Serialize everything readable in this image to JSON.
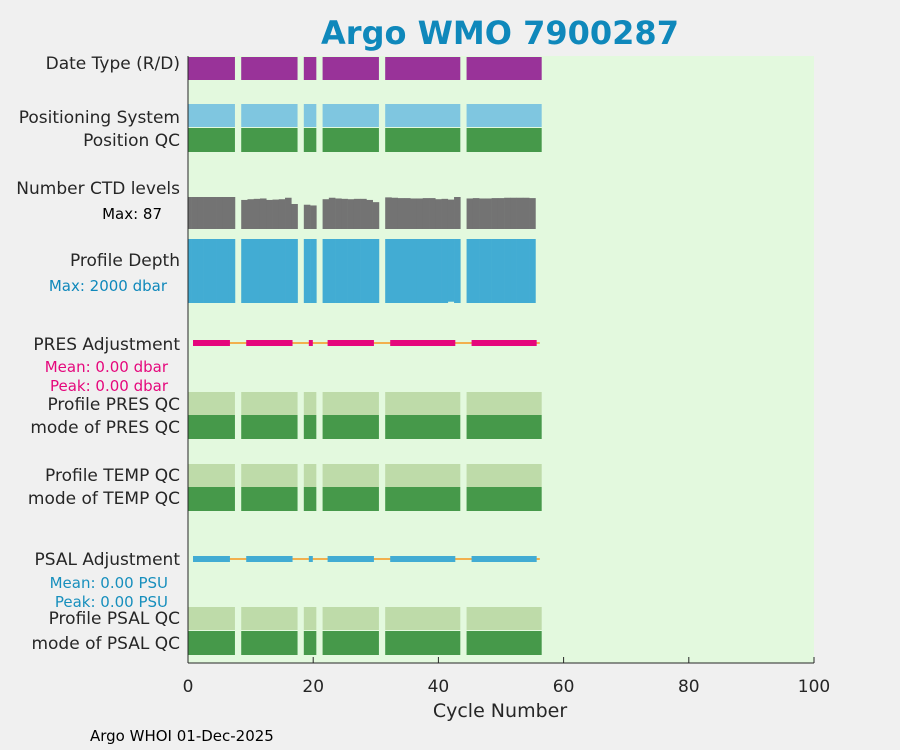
{
  "chart_data": {
    "type": "bar",
    "title": "Argo WMO 7900287",
    "xlabel": "Cycle Number",
    "xlim": [
      0,
      100
    ],
    "xticks": [
      "0",
      "20",
      "40",
      "60",
      "80",
      "100"
    ],
    "footer": "Argo WHOI 01-Dec-2025",
    "cycle_segments": [
      [
        0,
        7.5
      ],
      [
        8.5,
        17.5
      ],
      [
        18.5,
        20.5
      ],
      [
        21.5,
        30.5
      ],
      [
        31.5,
        43.5
      ],
      [
        44.5,
        56.5
      ]
    ],
    "rows": [
      {
        "label": "Date Type (R/D)",
        "kind": "bar",
        "color": "#993399"
      },
      {
        "label": "Positioning System",
        "kind": "bar",
        "color": "#7fc6e0"
      },
      {
        "label": "Position QC",
        "kind": "bar",
        "color": "#46994a"
      },
      {
        "label": "Number CTD levels",
        "kind": "levels",
        "color": "#737373"
      },
      {
        "label": "Profile Depth",
        "kind": "depth",
        "color": "#42acd3"
      },
      {
        "label": "PRES Adjustment",
        "kind": "adjust",
        "color": "#e5077c"
      },
      {
        "label": "Profile PRES QC",
        "kind": "bar",
        "color": "#bedba9"
      },
      {
        "label": "mode of PRES QC",
        "kind": "bar",
        "color": "#46994a"
      },
      {
        "label": "Profile TEMP QC",
        "kind": "bar",
        "color": "#bedba9"
      },
      {
        "label": "mode of TEMP QC",
        "kind": "bar",
        "color": "#46994a"
      },
      {
        "label": "PSAL Adjustment",
        "kind": "adjust",
        "color": "#42acd3"
      },
      {
        "label": "Profile PSAL QC",
        "kind": "bar",
        "color": "#bedba9"
      },
      {
        "label": "mode of PSAL QC",
        "kind": "bar",
        "color": "#46994a"
      }
    ],
    "ctd_levels": {
      "max_label": "Max: 87",
      "max": 87,
      "values": [
        87,
        87,
        87,
        87,
        87,
        87,
        87,
        87,
        79,
        79,
        81,
        82,
        83,
        79,
        80,
        81,
        85,
        68,
        67,
        66,
        64,
        86,
        81,
        85,
        83,
        82,
        81,
        82,
        82,
        79,
        73,
        85,
        86,
        85,
        84,
        84,
        83,
        83,
        84,
        84,
        81,
        82,
        80,
        87,
        87,
        83,
        84,
        83,
        83,
        84,
        84,
        85,
        85,
        85,
        85,
        84
      ]
    },
    "profile_depth": {
      "max_label": "Max: 2000 dbar",
      "max": 2000,
      "values": [
        2000,
        2000,
        2000,
        2000,
        2000,
        2000,
        2000,
        2000,
        2000,
        2000,
        2000,
        2000,
        2000,
        2000,
        2000,
        2000,
        2000,
        2000,
        2000,
        2000,
        2000,
        2000,
        2000,
        2000,
        2000,
        2000,
        2000,
        2000,
        2000,
        2000,
        2000,
        2000,
        2000,
        2000,
        2000,
        2000,
        2000,
        2000,
        2000,
        2000,
        2000,
        2000,
        1960,
        2000,
        2000,
        2000,
        2000,
        2000,
        2000,
        2000,
        2000,
        2000,
        2000,
        2000,
        2000,
        2000
      ]
    },
    "pres_adjustment": {
      "mean_label": "Mean: 0.00 dbar",
      "peak_label": "Peak: 0.00 dbar",
      "zero_line_color": "#f2b04e"
    },
    "psal_adjustment": {
      "mean_label": "Mean: 0.00 PSU",
      "peak_label": "Peak: 0.00 PSU",
      "zero_line_color": "#f2b04e"
    },
    "background_color": "#e3f9de",
    "title_color": "#0f88bb",
    "pres_text_color": "#e5077c",
    "psal_text_color": "#178fbd"
  }
}
